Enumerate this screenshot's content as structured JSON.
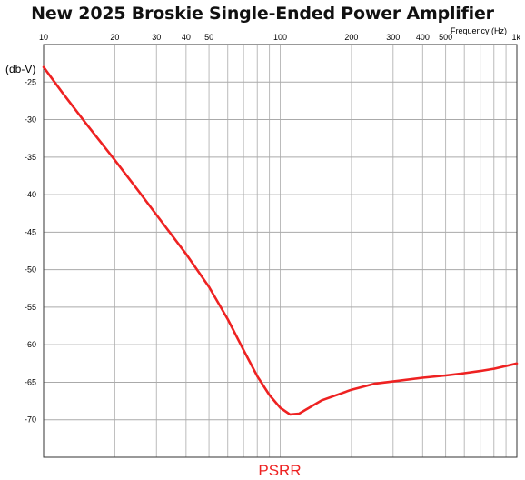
{
  "chart_data": {
    "type": "line",
    "title": "New 2025 Broskie Single-Ended Power Amplifier",
    "xlabel": "Frequency  (Hz)",
    "ylabel": "(db-V)",
    "x_scale": "log",
    "xlim": [
      10,
      1000
    ],
    "ylim": [
      -75,
      -20
    ],
    "x_tick_labels": [
      {
        "value": 10,
        "label": "10"
      },
      {
        "value": 20,
        "label": "20"
      },
      {
        "value": 30,
        "label": "30"
      },
      {
        "value": 40,
        "label": "40"
      },
      {
        "value": 50,
        "label": "50"
      },
      {
        "value": 100,
        "label": "100"
      },
      {
        "value": 200,
        "label": "200"
      },
      {
        "value": 300,
        "label": "300"
      },
      {
        "value": 400,
        "label": "400"
      },
      {
        "value": 500,
        "label": "500"
      },
      {
        "value": 1000,
        "label": "1k"
      }
    ],
    "y_ticks": [
      -25,
      -30,
      -35,
      -40,
      -45,
      -50,
      -55,
      -60,
      -65,
      -70
    ],
    "grid": true,
    "series": [
      {
        "name": "PSRR",
        "color": "#ee2222",
        "x": [
          10,
          12,
          15,
          20,
          25,
          30,
          40,
          50,
          60,
          70,
          80,
          90,
          100,
          110,
          120,
          150,
          200,
          250,
          300,
          400,
          500,
          600,
          700,
          800,
          1000
        ],
        "y": [
          -23,
          -26.4,
          -30.4,
          -35.4,
          -39.4,
          -42.7,
          -47.9,
          -52.3,
          -56.6,
          -60.7,
          -64.2,
          -66.7,
          -68.4,
          -69.3,
          -69.2,
          -67.4,
          -66.0,
          -65.2,
          -64.9,
          -64.4,
          -64.1,
          -63.8,
          -63.5,
          -63.2,
          -62.5
        ]
      }
    ]
  }
}
